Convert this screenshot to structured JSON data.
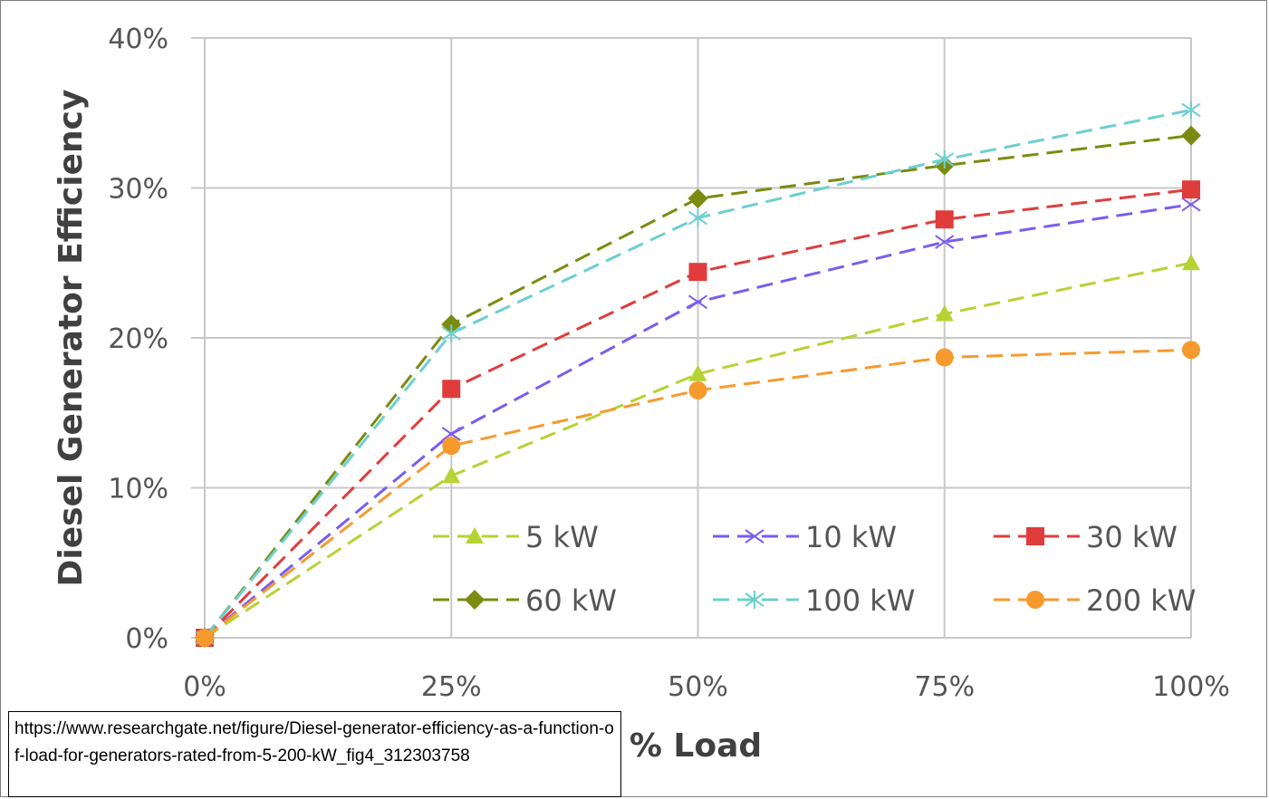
{
  "chart_data": {
    "type": "line",
    "title": "",
    "xlabel": "% Load",
    "ylabel": "Diesel Generator Efficiency",
    "x": [
      0,
      25,
      50,
      75,
      100
    ],
    "x_tick_labels": [
      "0%",
      "25%",
      "50%",
      "75%",
      "100%"
    ],
    "y_tick_labels": [
      "0%",
      "10%",
      "20%",
      "30%",
      "40%"
    ],
    "y_ticks": [
      0,
      10,
      20,
      30,
      40
    ],
    "xlim": [
      0,
      100
    ],
    "ylim": [
      0,
      40
    ],
    "grid": true,
    "legend_position": "bottom-right inside plot",
    "series": [
      {
        "name": "5 kW",
        "color": "#b5d334",
        "marker": "triangle",
        "values": [
          0,
          10.8,
          17.6,
          21.6,
          25.0
        ]
      },
      {
        "name": "10 kW",
        "color": "#7a5cf0",
        "marker": "x",
        "values": [
          0,
          13.6,
          22.4,
          26.4,
          28.9
        ]
      },
      {
        "name": "30 kW",
        "color": "#e03c3c",
        "marker": "square",
        "values": [
          0,
          16.6,
          24.4,
          27.9,
          29.9
        ]
      },
      {
        "name": "60 kW",
        "color": "#7a8c10",
        "marker": "diamond",
        "values": [
          0,
          20.9,
          29.3,
          31.5,
          33.5
        ]
      },
      {
        "name": "100 kW",
        "color": "#6ccfd0",
        "marker": "asterisk",
        "values": [
          0,
          20.3,
          28.0,
          31.9,
          35.2
        ]
      },
      {
        "name": "200 kW",
        "color": "#f79a2e",
        "marker": "circle",
        "values": [
          0,
          12.8,
          16.5,
          18.7,
          19.2
        ]
      }
    ]
  },
  "source_note": "https://www.researchgate.net/figure/Diesel-generator-efficiency-as-a-function-of-load-for-generators-rated-from-5-200-kW_fig4_312303758"
}
